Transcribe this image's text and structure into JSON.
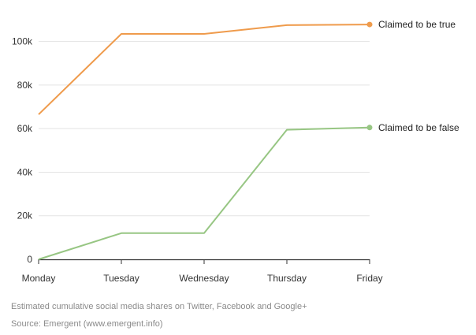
{
  "chart_data": {
    "type": "line",
    "categories": [
      "Monday",
      "Tuesday",
      "Wednesday",
      "Thursday",
      "Friday"
    ],
    "ylim": [
      0,
      110000
    ],
    "yticks": [
      0,
      20000,
      40000,
      60000,
      80000,
      100000
    ],
    "ytick_labels": [
      "0",
      "20k",
      "40k",
      "60k",
      "80k",
      "100k"
    ],
    "grid": true,
    "series": [
      {
        "name": "Claimed to be true",
        "color": "#ef9b4c",
        "values": [
          66500,
          103500,
          103500,
          107500,
          107800
        ]
      },
      {
        "name": "Claimed to be false",
        "color": "#97c683",
        "values": [
          0,
          12000,
          12000,
          59500,
          60500
        ]
      }
    ]
  },
  "caption": "Estimated cumulative social media shares on Twitter, Facebook and Google+",
  "source": "Source: Emergent (www.emergent.info)"
}
